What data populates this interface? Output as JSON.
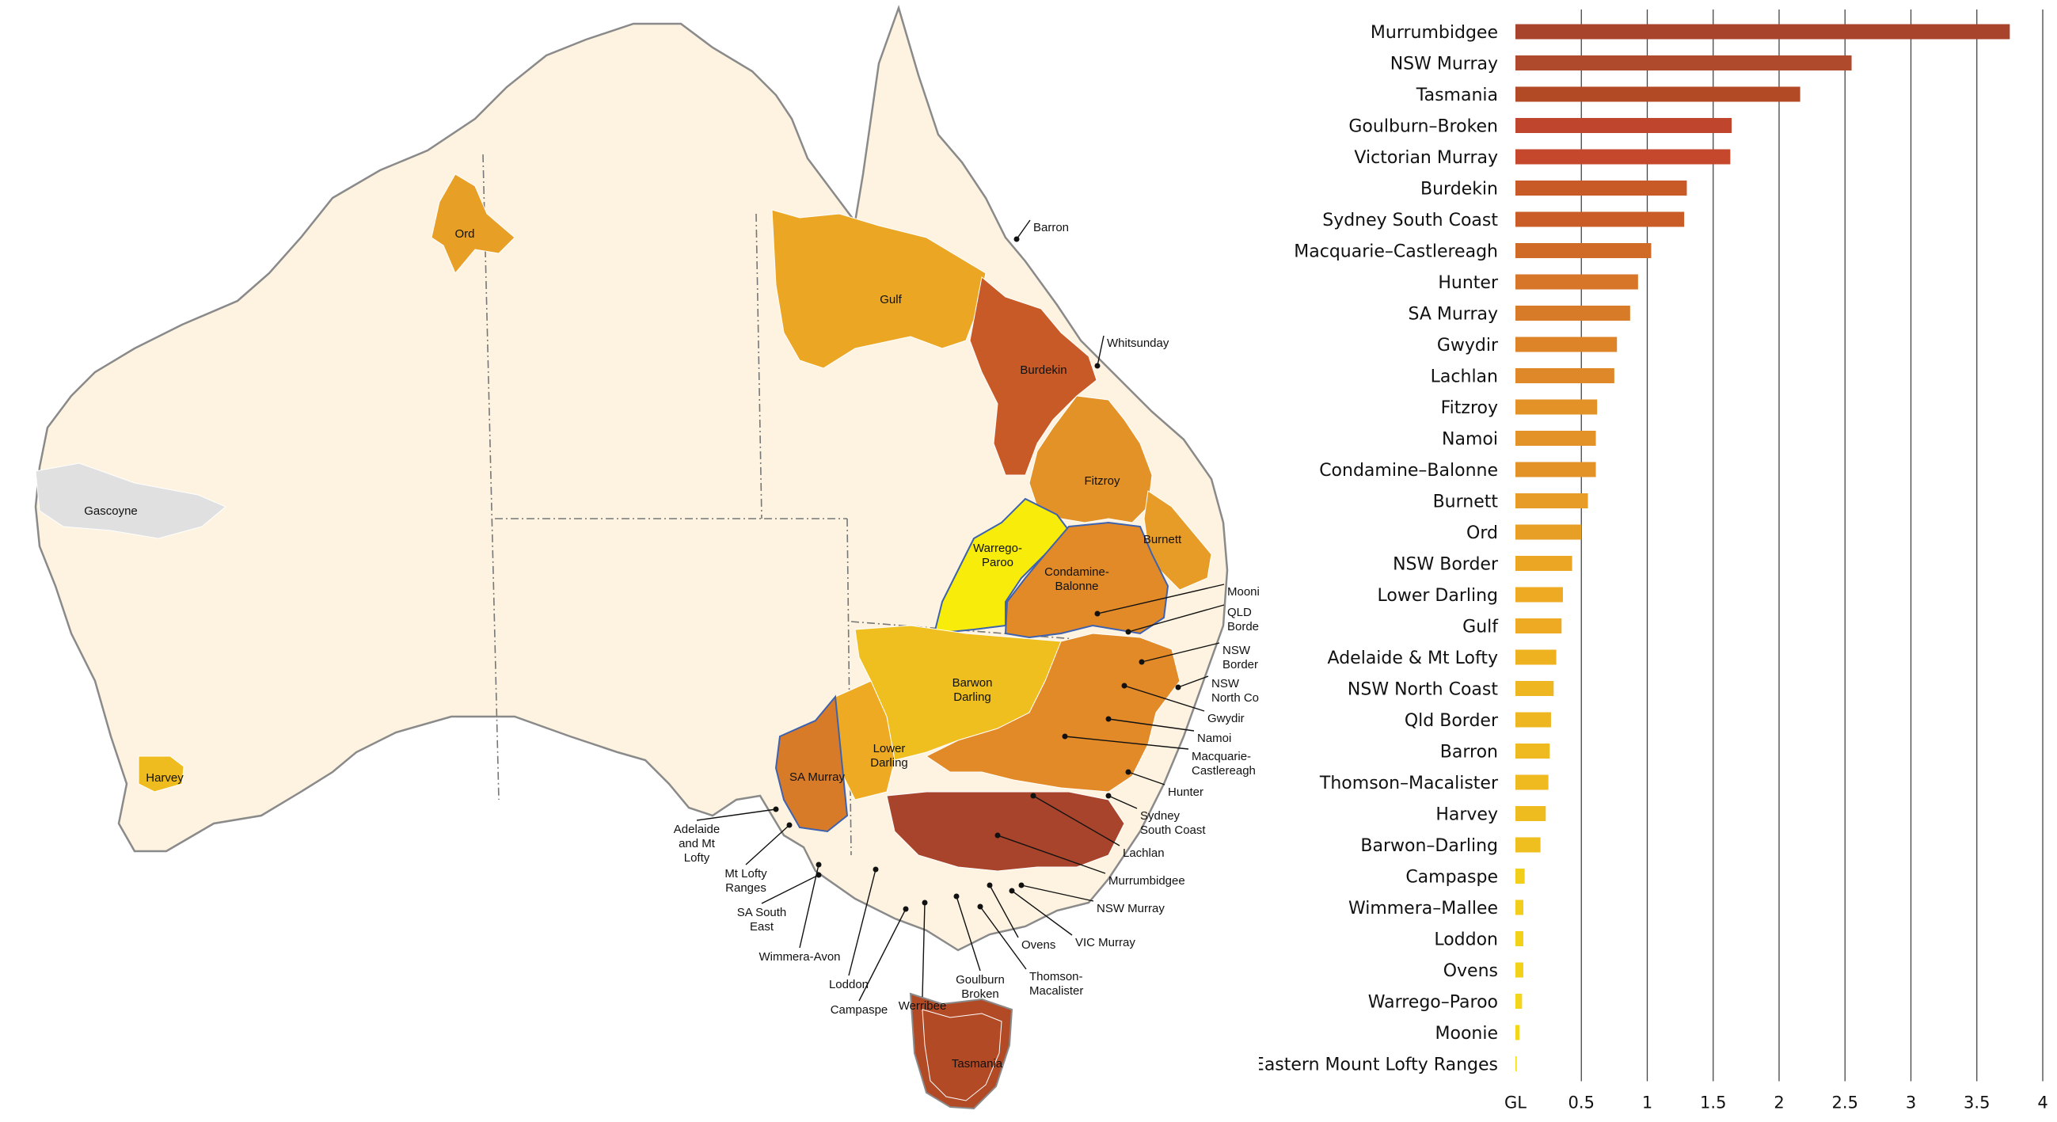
{
  "chart_data": {
    "type": "bar",
    "orientation": "horizontal",
    "title": "",
    "xlabel": "GL",
    "ylabel": "",
    "xlim": [
      0,
      4
    ],
    "x_ticks": [
      "GL",
      "0.5",
      "1",
      "1.5",
      "2",
      "2.5",
      "3",
      "3.5",
      "4"
    ],
    "grid": "vertical",
    "categories": [
      "Murrumbidgee",
      "NSW Murray",
      "Tasmania",
      "Goulburn–Broken",
      "Victorian Murray",
      "Burdekin",
      "Sydney South Coast",
      "Macquarie–Castlereagh",
      "Hunter",
      "SA Murray",
      "Gwydir",
      "Lachlan",
      "Fitzroy",
      "Namoi",
      "Condamine–Balonne",
      "Burnett",
      "Ord",
      "NSW Border",
      "Lower Darling",
      "Gulf",
      "Adelaide & Mt Lofty",
      "NSW North Coast",
      "Qld Border",
      "Barron",
      "Thomson–Macalister",
      "Harvey",
      "Barwon–Darling",
      "Campaspe",
      "Wimmera–Mallee",
      "Loddon",
      "Ovens",
      "Warrego–Paroo",
      "Moonie",
      "Eastern Mount Lofty Ranges"
    ],
    "values": [
      3.75,
      2.55,
      2.16,
      1.64,
      1.63,
      1.3,
      1.28,
      1.03,
      0.93,
      0.87,
      0.77,
      0.75,
      0.62,
      0.61,
      0.61,
      0.55,
      0.5,
      0.43,
      0.36,
      0.35,
      0.31,
      0.29,
      0.27,
      0.26,
      0.25,
      0.23,
      0.19,
      0.07,
      0.06,
      0.06,
      0.06,
      0.05,
      0.03,
      0.01
    ],
    "colors": [
      "#a8432c",
      "#b04a2c",
      "#b34a26",
      "#c0452d",
      "#c5482c",
      "#c85a27",
      "#c95c27",
      "#cf6b27",
      "#d77528",
      "#d87b29",
      "#dd8429",
      "#df8829",
      "#e39228",
      "#e39228",
      "#e39228",
      "#e69c27",
      "#e89f26",
      "#eba624",
      "#edaa22",
      "#edaa22",
      "#eeb221",
      "#eeb621",
      "#eeb621",
      "#efba20",
      "#efba20",
      "#efbc20",
      "#efbe1f",
      "#f2cd1a",
      "#f2cd1a",
      "#f3d119",
      "#f3d119",
      "#f3d519",
      "#f3d519",
      "#f5e114"
    ]
  },
  "map": {
    "regions": [
      {
        "id": "gascoyne",
        "label": "Gascoyne",
        "color": "#e0e0e0"
      },
      {
        "id": "ord",
        "label": "Ord",
        "color": "#e89f26"
      },
      {
        "id": "harvey",
        "label": "Harvey",
        "color": "#efbc20"
      },
      {
        "id": "gulf",
        "label": "Gulf",
        "color": "#eba624"
      },
      {
        "id": "burdekin",
        "label": "Burdekin",
        "color": "#c85a27"
      },
      {
        "id": "fitzroy",
        "label": "Fitzroy",
        "color": "#e39228"
      },
      {
        "id": "burnett",
        "label": "Burnett",
        "color": "#e69c27"
      },
      {
        "id": "warrego",
        "label": "Warrego-\nParoo",
        "color": "#f7ec0a"
      },
      {
        "id": "condamine",
        "label": "Condamine-\nBalonne",
        "color": "#e28a28"
      },
      {
        "id": "barwon",
        "label": "Barwon\nDarling",
        "color": "#efbe1f"
      },
      {
        "id": "lowerdarling",
        "label": "Lower\nDarling",
        "color": "#edaa22"
      },
      {
        "id": "samurray",
        "label": "SA Murray",
        "color": "#d87b29"
      },
      {
        "id": "tasmania",
        "label": "Tasmania",
        "color": "#b34a26"
      },
      {
        "id": "murrumbidgee",
        "label": "",
        "color": "#a8432c"
      }
    ],
    "callouts": [
      {
        "label": "Barron"
      },
      {
        "label": "Whitsunday"
      },
      {
        "label": "Moonie"
      },
      {
        "label": "QLD\nBorder"
      },
      {
        "label": "NSW\nBorder"
      },
      {
        "label": "NSW\nNorth Coast"
      },
      {
        "label": "Gwydir"
      },
      {
        "label": "Namoi"
      },
      {
        "label": "Macquarie-\nCastlereagh"
      },
      {
        "label": "Hunter"
      },
      {
        "label": "Sydney\nSouth Coast"
      },
      {
        "label": "Lachlan"
      },
      {
        "label": "Murrumbidgee"
      },
      {
        "label": "NSW Murray"
      },
      {
        "label": "VIC Murray"
      },
      {
        "label": "Ovens"
      },
      {
        "label": "Thomson-\nMacalister"
      },
      {
        "label": "Goulburn\nBroken"
      },
      {
        "label": "Werribee"
      },
      {
        "label": "Campaspe"
      },
      {
        "label": "Loddon"
      },
      {
        "label": "Wimmera-Avon"
      },
      {
        "label": "SA South\nEast"
      },
      {
        "label": "Mt Lofty\nRanges"
      },
      {
        "label": "Adelaide\nand Mt\nLofty"
      }
    ]
  }
}
